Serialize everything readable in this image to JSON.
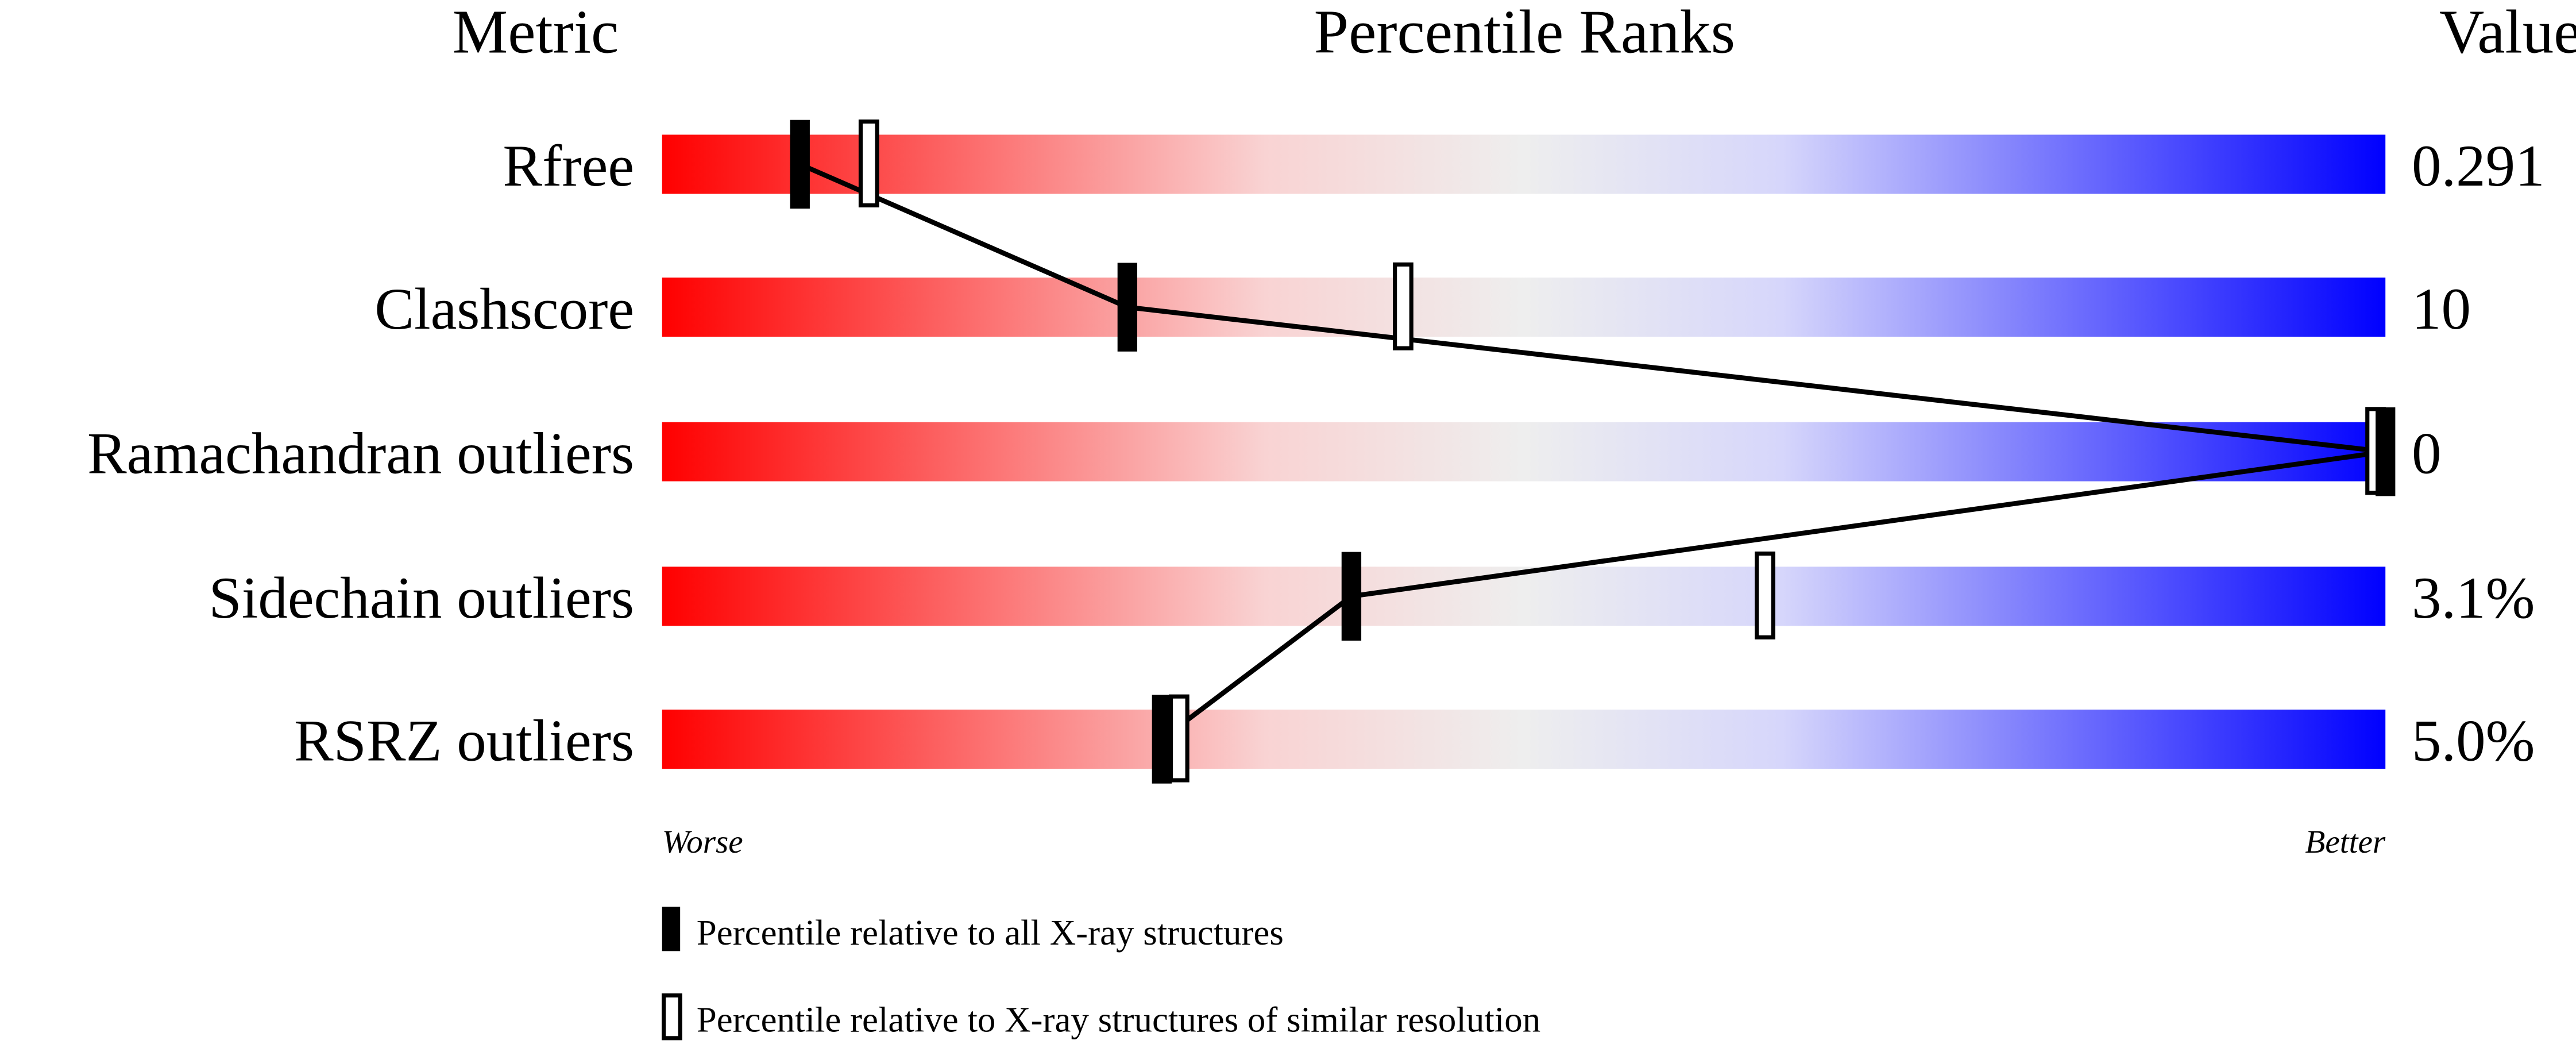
{
  "chart_data": {
    "type": "bar",
    "headers": {
      "metric": "Metric",
      "ranks": "Percentile Ranks",
      "value": "Value"
    },
    "axis_range": [
      0,
      100
    ],
    "worse_label": "Worse",
    "better_label": "Better",
    "gradient_colors": [
      "#ff0000",
      "#f9d3d3",
      "#eeeeee",
      "#d6d6fb",
      "#0000ff"
    ],
    "metrics": [
      {
        "name": "Rfree",
        "value": "0.291",
        "percentile_all": 8,
        "percentile_similar": 12
      },
      {
        "name": "Clashscore",
        "value": "10",
        "percentile_all": 27,
        "percentile_similar": 43
      },
      {
        "name": "Ramachandran outliers",
        "value": "0",
        "percentile_all": 100,
        "percentile_similar": 100
      },
      {
        "name": "Sidechain outliers",
        "value": "3.1%",
        "percentile_all": 40,
        "percentile_similar": 64
      },
      {
        "name": "RSRZ outliers",
        "value": "5.0%",
        "percentile_all": 29,
        "percentile_similar": 30
      }
    ],
    "legend": [
      {
        "marker": "filled",
        "label": "Percentile relative to all X-ray structures"
      },
      {
        "marker": "open",
        "label": "Percentile relative to X-ray structures of similar resolution"
      }
    ]
  }
}
